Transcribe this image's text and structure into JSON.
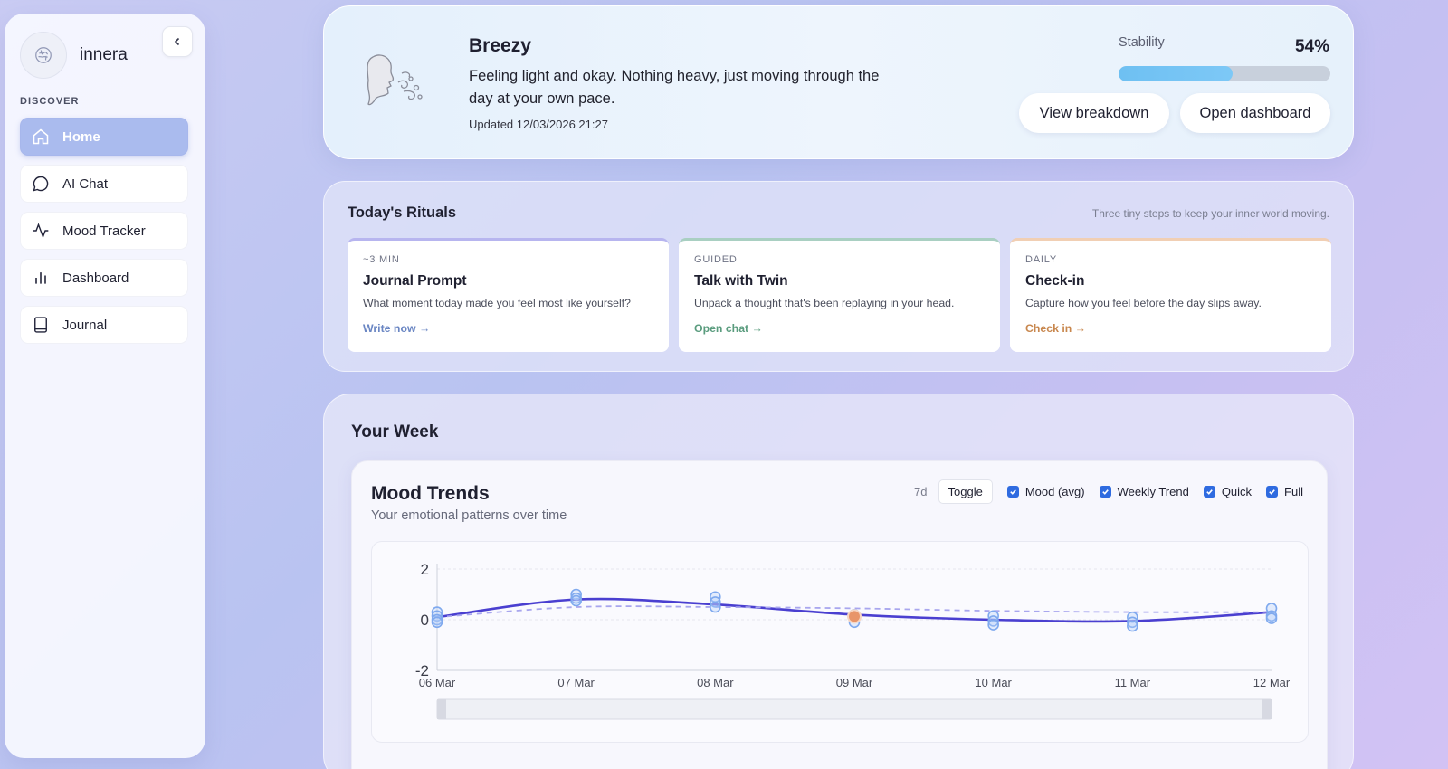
{
  "app": {
    "name": "innera",
    "logo_icon": "brain-icon"
  },
  "sidebar": {
    "section_label": "DISCOVER",
    "collapse_icon": "chevron-left-icon",
    "items": [
      {
        "label": "Home",
        "icon": "home-icon",
        "active": true
      },
      {
        "label": "AI Chat",
        "icon": "chat-bubble-icon",
        "active": false
      },
      {
        "label": "Mood Tracker",
        "icon": "activity-icon",
        "active": false
      },
      {
        "label": "Dashboard",
        "icon": "bar-chart-icon",
        "active": false
      },
      {
        "label": "Journal",
        "icon": "book-icon",
        "active": false
      }
    ]
  },
  "hero": {
    "title": "Breezy",
    "description": "Feeling light and okay. Nothing heavy, just moving through the day at your own pace.",
    "updated": "Updated 12/03/2026 21:27",
    "stability_label": "Stability",
    "stability_value": "54%",
    "stability_fraction": 0.54,
    "btn_breakdown": "View breakdown",
    "btn_dashboard": "Open dashboard",
    "accent_fill": "#6ec0f2"
  },
  "rituals": {
    "title": "Today's Rituals",
    "subtitle": "Three tiny steps to keep your inner world moving.",
    "cards": [
      {
        "tag": "~3 MIN",
        "name": "Journal Prompt",
        "desc": "What moment today made you feel most like yourself?",
        "link": "Write now →"
      },
      {
        "tag": "GUIDED",
        "name": "Talk with Twin",
        "desc": "Unpack a thought that's been replaying in your head.",
        "link": "Open chat →"
      },
      {
        "tag": "DAILY",
        "name": "Check-in",
        "desc": "Capture how you feel before the day slips away.",
        "link": "Check in →"
      }
    ]
  },
  "week": {
    "title": "Your Week",
    "mood": {
      "title": "Mood Trends",
      "subtitle": "Your emotional patterns over time",
      "range": "7d",
      "toggle": "Toggle",
      "checkboxes": [
        {
          "label": "Mood (avg)",
          "checked": true
        },
        {
          "label": "Weekly Trend",
          "checked": true
        },
        {
          "label": "Quick",
          "checked": true
        },
        {
          "label": "Full",
          "checked": true
        }
      ]
    }
  },
  "chart_data": {
    "type": "line",
    "title": "Mood Trends",
    "x": [
      "06 Mar",
      "07 Mar",
      "08 Mar",
      "09 Mar",
      "10 Mar",
      "11 Mar",
      "12 Mar"
    ],
    "ylim": [
      -2,
      2
    ],
    "yticks": [
      "2",
      "0",
      "-2"
    ],
    "grid": true,
    "series": [
      {
        "name": "Mood (avg)",
        "style": "solid",
        "color": "#4a3fd0",
        "values": [
          0.1,
          0.8,
          0.6,
          0.2,
          0.0,
          -0.05,
          0.3
        ]
      },
      {
        "name": "Weekly Trend",
        "style": "dashed",
        "color": "#a8a6ee",
        "values": [
          0.1,
          0.5,
          0.5,
          0.45,
          0.35,
          0.3,
          0.3
        ]
      }
    ],
    "points": [
      {
        "x": "06 Mar",
        "values": [
          0.3,
          0.15,
          0.0,
          -0.1
        ],
        "highlight": false
      },
      {
        "x": "07 Mar",
        "values": [
          1.0,
          0.85,
          0.75
        ],
        "highlight": false
      },
      {
        "x": "08 Mar",
        "values": [
          0.9,
          0.7,
          0.5
        ],
        "highlight": false
      },
      {
        "x": "09 Mar",
        "values": [
          0.2,
          -0.1
        ],
        "highlight": true
      },
      {
        "x": "10 Mar",
        "values": [
          0.15,
          -0.05,
          -0.2
        ],
        "highlight": false
      },
      {
        "x": "11 Mar",
        "values": [
          0.1,
          -0.1,
          -0.25
        ],
        "highlight": false
      },
      {
        "x": "12 Mar",
        "values": [
          0.45,
          0.15,
          0.05
        ],
        "highlight": false
      }
    ],
    "colors": {
      "point": "#7fa9ee",
      "highlight": "#e8956a"
    }
  }
}
